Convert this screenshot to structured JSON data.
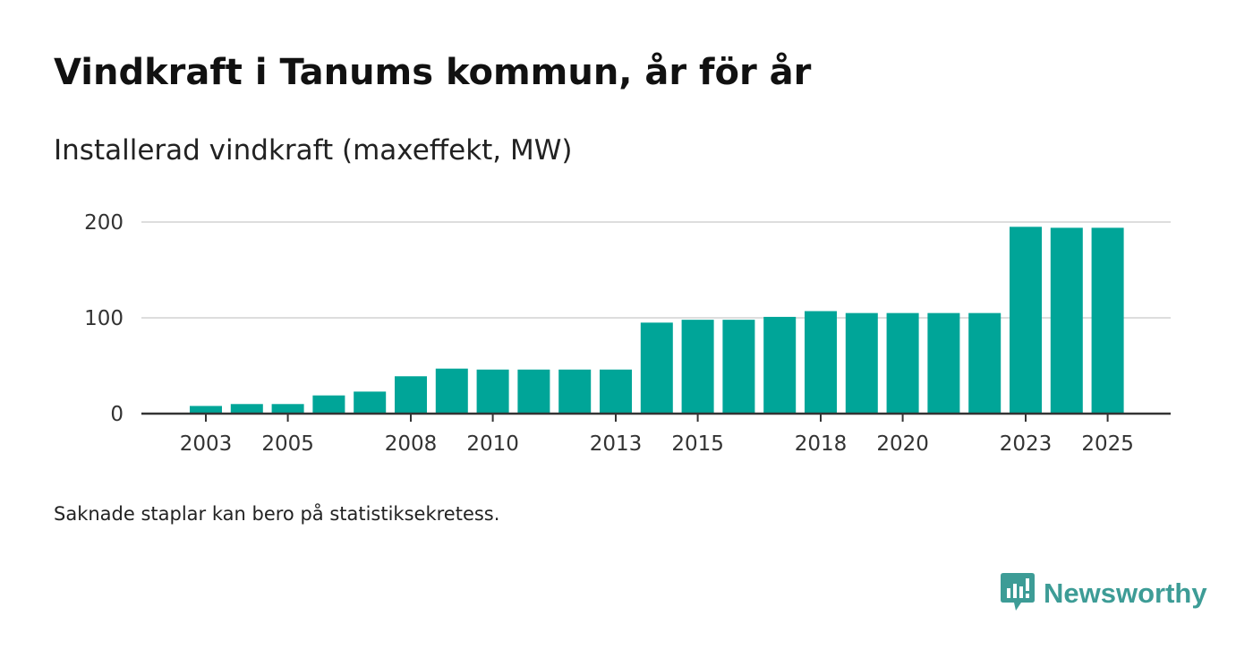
{
  "title": "Vindkraft i Tanums kommun, år för år",
  "subtitle": "Installerad vindkraft (maxeffekt, MW)",
  "footnote": "Saknade staplar kan bero på statistiksekretess.",
  "brand": {
    "name": "Newsworthy",
    "icon": "newsworthy-logo-icon",
    "color": "#3d9c96"
  },
  "chart_data": {
    "type": "bar",
    "title": "Vindkraft i Tanums kommun, år för år",
    "ylabel": "Installerad vindkraft (maxeffekt, MW)",
    "xlabel": "",
    "bar_color": "#00a598",
    "grid": true,
    "ylim": [
      0,
      200
    ],
    "yticks": [
      0,
      100,
      200
    ],
    "xticks": [
      2003,
      2005,
      2008,
      2010,
      2013,
      2015,
      2018,
      2020,
      2023,
      2025
    ],
    "x": [
      2003,
      2004,
      2005,
      2006,
      2007,
      2008,
      2009,
      2010,
      2011,
      2012,
      2013,
      2014,
      2015,
      2016,
      2017,
      2018,
      2019,
      2020,
      2021,
      2022,
      2023,
      2024,
      2025
    ],
    "values": [
      8,
      10,
      10,
      19,
      23,
      39,
      47,
      46,
      46,
      46,
      46,
      95,
      98,
      98,
      101,
      107,
      105,
      105,
      105,
      105,
      195,
      194,
      194
    ]
  }
}
